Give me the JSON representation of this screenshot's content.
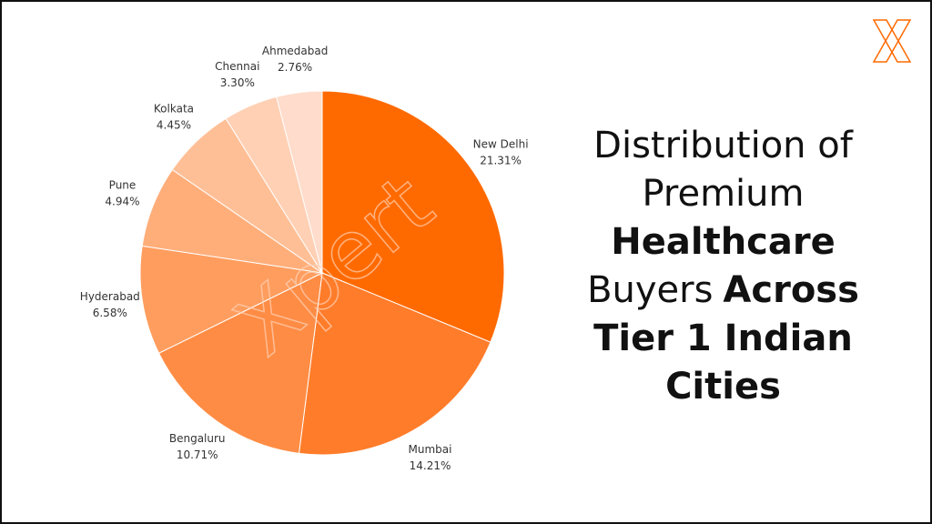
{
  "chart_data": {
    "type": "pie",
    "categories": [
      "New Delhi",
      "Mumbai",
      "Bengaluru",
      "Hyderabad",
      "Pune",
      "Kolkata",
      "Chennai",
      "Ahmedabad"
    ],
    "values": [
      21.31,
      14.21,
      10.71,
      6.58,
      4.94,
      4.45,
      3.3,
      2.76
    ],
    "value_labels": [
      "21.31%",
      "14.21%",
      "10.71%",
      "6.58%",
      "4.94%",
      "4.45%",
      "3.30%",
      "2.76%"
    ],
    "colors": [
      "#ff6a00",
      "#ff7c2a",
      "#ff8c44",
      "#ff9d5e",
      "#ffae7a",
      "#ffbf96",
      "#ffd0b4",
      "#ffdccb"
    ],
    "watermark": "Xpert",
    "title_lines": [
      [
        {
          "text": "Distribution of",
          "bold": false
        }
      ],
      [
        {
          "text": "Premium",
          "bold": false
        }
      ],
      [
        {
          "text": "Healthcare",
          "bold": true
        }
      ],
      [
        {
          "text": "Buyers",
          "bold": false
        },
        {
          "text": "Across",
          "bold": true
        }
      ],
      [
        {
          "text": "Tier 1 Indian",
          "bold": true
        }
      ],
      [
        {
          "text": "Cities",
          "bold": true
        }
      ]
    ]
  }
}
